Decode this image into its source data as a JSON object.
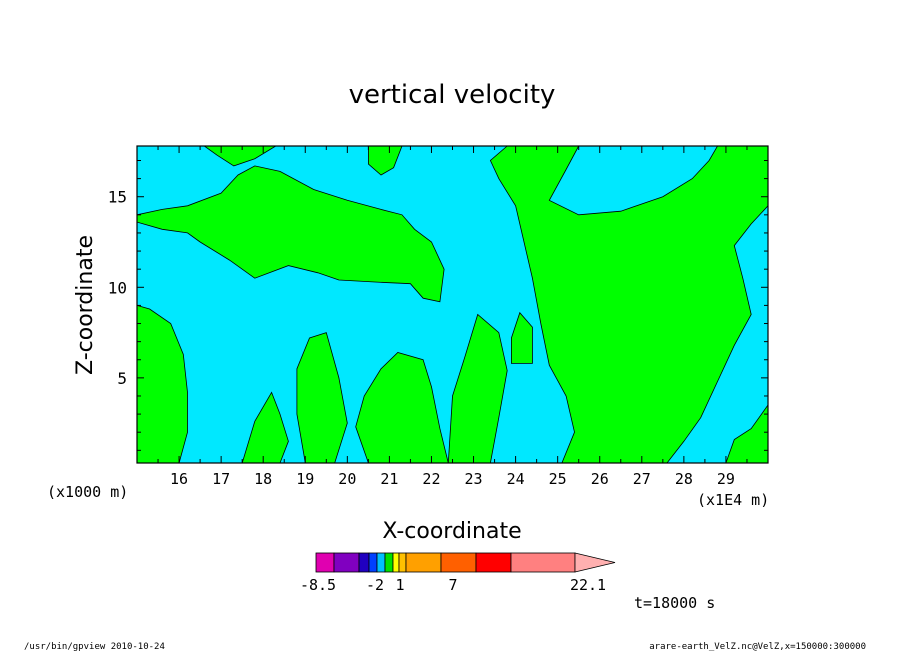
{
  "chart_data": {
    "type": "heatmap",
    "title": "vertical velocity",
    "xlabel": "X-coordinate",
    "ylabel": "Z-coordinate",
    "x_unit_left": "(x1000 m)",
    "x_unit_right": "(x1E4 m)",
    "xlim": [
      15.0,
      30.0
    ],
    "ylim": [
      0.3,
      17.8
    ],
    "x_ticks": [
      "16",
      "17",
      "18",
      "19",
      "20",
      "21",
      "22",
      "23",
      "24",
      "25",
      "26",
      "27",
      "28",
      "29"
    ],
    "y_ticks": [
      "5",
      "10",
      "15"
    ],
    "contour_fill_colors": {
      "background": "#00e8ff",
      "positive_region": "#00ff00"
    },
    "regions": [
      {
        "name": "upper-left-band",
        "points": [
          [
            15,
            14
          ],
          [
            15.6,
            14.3
          ],
          [
            16.2,
            14.5
          ],
          [
            17,
            15.2
          ],
          [
            17.4,
            16.2
          ],
          [
            17.8,
            16.7
          ],
          [
            18.4,
            16.4
          ],
          [
            19.2,
            15.4
          ],
          [
            20,
            14.8
          ],
          [
            20.8,
            14.3
          ],
          [
            21.3,
            14
          ],
          [
            21.6,
            13.2
          ],
          [
            22,
            12.5
          ],
          [
            22.3,
            11
          ],
          [
            22.2,
            9.2
          ],
          [
            21.8,
            9.4
          ],
          [
            21.5,
            10.2
          ],
          [
            20.6,
            10.3
          ],
          [
            19.8,
            10.4
          ],
          [
            19.3,
            10.8
          ],
          [
            18.6,
            11.2
          ],
          [
            17.8,
            10.5
          ],
          [
            17.2,
            11.5
          ],
          [
            16.5,
            12.5
          ],
          [
            16.2,
            13
          ],
          [
            15.6,
            13.2
          ],
          [
            15,
            13.6
          ]
        ]
      },
      {
        "name": "top-left-lobe",
        "points": [
          [
            16.6,
            17.8
          ],
          [
            18.3,
            17.8
          ],
          [
            17.8,
            17.1
          ],
          [
            17.3,
            16.7
          ],
          [
            16.9,
            17.3
          ]
        ]
      },
      {
        "name": "top-small-lobe",
        "points": [
          [
            20.5,
            17.8
          ],
          [
            21.3,
            17.8
          ],
          [
            21.1,
            16.6
          ],
          [
            20.8,
            16.2
          ],
          [
            20.5,
            16.8
          ]
        ]
      },
      {
        "name": "right-main-column",
        "points": [
          [
            23.8,
            17.8
          ],
          [
            25.5,
            17.8
          ],
          [
            25.2,
            16.5
          ],
          [
            24.8,
            14.8
          ],
          [
            25.5,
            14
          ],
          [
            26.5,
            14.2
          ],
          [
            27.5,
            15
          ],
          [
            28.2,
            16
          ],
          [
            28.6,
            17
          ],
          [
            28.8,
            17.8
          ],
          [
            30,
            17.8
          ],
          [
            30,
            14.5
          ],
          [
            29.6,
            13.5
          ],
          [
            29.2,
            12.3
          ],
          [
            29.4,
            10.5
          ],
          [
            29.6,
            8.5
          ],
          [
            29.2,
            6.8
          ],
          [
            28.8,
            4.8
          ],
          [
            28.4,
            2.8
          ],
          [
            28,
            1.5
          ],
          [
            27.6,
            0.3
          ],
          [
            25.1,
            0.3
          ],
          [
            25.4,
            2
          ],
          [
            25.2,
            4
          ],
          [
            24.8,
            5.7
          ],
          [
            24.6,
            8
          ],
          [
            24.4,
            10.5
          ],
          [
            24.2,
            12.5
          ],
          [
            24,
            14.5
          ],
          [
            23.6,
            16
          ],
          [
            23.4,
            17
          ]
        ]
      },
      {
        "name": "bottom-left-patch",
        "points": [
          [
            15,
            0.3
          ],
          [
            16,
            0.3
          ],
          [
            16.2,
            2
          ],
          [
            16.2,
            4.2
          ],
          [
            16.1,
            6.3
          ],
          [
            15.8,
            8
          ],
          [
            15.3,
            8.8
          ],
          [
            15,
            9
          ]
        ]
      },
      {
        "name": "center-bottom-patch",
        "points": [
          [
            20.5,
            0.3
          ],
          [
            22.4,
            0.3
          ],
          [
            22.2,
            2.2
          ],
          [
            22,
            4.5
          ],
          [
            21.8,
            6
          ],
          [
            21.2,
            6.4
          ],
          [
            20.8,
            5.5
          ],
          [
            20.4,
            4
          ],
          [
            20.2,
            2.3
          ]
        ]
      },
      {
        "name": "left-bottom-plume",
        "points": [
          [
            17.5,
            0.3
          ],
          [
            18.4,
            0.3
          ],
          [
            18.6,
            1.5
          ],
          [
            18.4,
            3
          ],
          [
            18.2,
            4.2
          ],
          [
            17.8,
            2.6
          ]
        ]
      },
      {
        "name": "center-left-plume",
        "points": [
          [
            19,
            0.3
          ],
          [
            19.7,
            0.3
          ],
          [
            20,
            2.5
          ],
          [
            19.8,
            5
          ],
          [
            19.5,
            7.5
          ],
          [
            19.1,
            7.2
          ],
          [
            18.8,
            5.5
          ],
          [
            18.8,
            3
          ]
        ]
      },
      {
        "name": "center-right-plume",
        "points": [
          [
            22.4,
            0.3
          ],
          [
            23.4,
            0.3
          ],
          [
            23.6,
            2.8
          ],
          [
            23.8,
            5.4
          ],
          [
            23.6,
            7.5
          ],
          [
            23.1,
            8.5
          ],
          [
            22.8,
            6.2
          ],
          [
            22.5,
            4
          ]
        ]
      },
      {
        "name": "right-bottom-patch",
        "points": [
          [
            29,
            0.3
          ],
          [
            30,
            0.3
          ],
          [
            30,
            3.5
          ],
          [
            29.6,
            2.2
          ],
          [
            29.2,
            1.6
          ]
        ]
      },
      {
        "name": "small-lobe-24",
        "points": [
          [
            23.9,
            5.8
          ],
          [
            24.4,
            5.8
          ],
          [
            24.4,
            7.8
          ],
          [
            24.1,
            8.6
          ],
          [
            23.9,
            7.2
          ]
        ]
      }
    ],
    "colorbar": {
      "colors": [
        "#e000b0",
        "#8000c0",
        "#2000c0",
        "#0040ff",
        "#00c0ff",
        "#00e000",
        "#ffff00",
        "#ffc000",
        "#ffa000",
        "#ff6000",
        "#ff0000",
        "#ff8080"
      ],
      "labels": [
        "-8.5",
        "-2",
        "1",
        "7",
        "22.1"
      ],
      "arrow_color": "#ffb0b0"
    },
    "annotation": "t=18000 s"
  },
  "footer": {
    "left": "/usr/bin/gpview   2010-10-24",
    "right": "arare-earth_VelZ.nc@VelZ,x=150000:300000"
  }
}
